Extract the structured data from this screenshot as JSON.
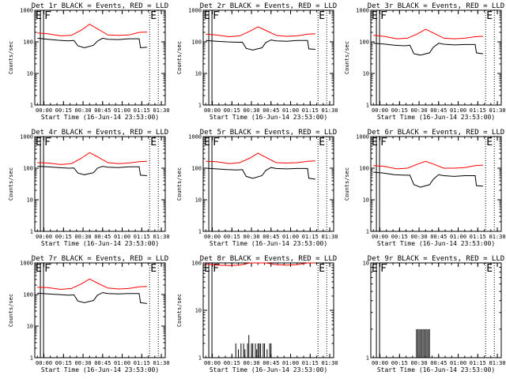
{
  "chart_data": [
    {
      "type": "line",
      "title": "Det 1r BLACK = Events, RED = LLD",
      "xlabel": "Start Time (16-Jun-14 23:53:00)",
      "ylabel": "Counts/sec",
      "yscale": "log",
      "ylim": [
        1,
        1000
      ],
      "xlim": [
        0,
        100
      ],
      "x_unit": "minutes from 23:53:00",
      "x_ticks": [
        7,
        22,
        37,
        52,
        67,
        82,
        97
      ],
      "x_tick_labels": [
        "00:00",
        "00:15",
        "00:30",
        "00:45",
        "01:00",
        "01:15",
        "01:30"
      ],
      "y_ticks": [
        1,
        10,
        100,
        1000
      ],
      "y_tick_labels": [
        "1",
        "10",
        "100",
        "1000"
      ],
      "markers": [
        {
          "label": "E",
          "x": 0
        },
        {
          "label": "F",
          "x": 5.5
        },
        {
          "label": "E",
          "x": 88
        }
      ],
      "series": [
        {
          "color": "#ff0000",
          "x": [
            2,
            10,
            20,
            28,
            36,
            42,
            48,
            56,
            64,
            72,
            80,
            86
          ],
          "y": [
            190,
            180,
            155,
            160,
            240,
            360,
            260,
            165,
            160,
            165,
            200,
            205
          ]
        },
        {
          "color": "#000000",
          "x": [
            2,
            10,
            18,
            26,
            30,
            33,
            38,
            45,
            48,
            52,
            56,
            64,
            72,
            80,
            81,
            86
          ],
          "y": [
            130,
            120,
            112,
            108,
            110,
            75,
            65,
            78,
            105,
            130,
            120,
            118,
            125,
            125,
            65,
            68
          ]
        }
      ]
    },
    {
      "type": "line",
      "title": "Det 2r BLACK = Events, RED = LLD",
      "xlabel": "Start Time (16-Jun-14 23:53:00)",
      "ylabel": "Counts/sec",
      "yscale": "log",
      "ylim": [
        1,
        1000
      ],
      "xlim": [
        0,
        100
      ],
      "x_unit": "minutes from 23:53:00",
      "x_ticks": [
        7,
        22,
        37,
        52,
        67,
        82,
        97
      ],
      "x_tick_labels": [
        "00:00",
        "00:15",
        "00:30",
        "00:45",
        "01:00",
        "01:15",
        "01:30"
      ],
      "y_ticks": [
        1,
        10,
        100,
        1000
      ],
      "y_tick_labels": [
        "1",
        "10",
        "100",
        "1000"
      ],
      "markers": [
        {
          "label": "E",
          "x": 0
        },
        {
          "label": "F",
          "x": 5.5
        },
        {
          "label": "E",
          "x": 88
        }
      ],
      "series": [
        {
          "color": "#ff0000",
          "x": [
            2,
            10,
            20,
            28,
            36,
            42,
            48,
            56,
            64,
            72,
            80,
            86
          ],
          "y": [
            175,
            165,
            145,
            155,
            220,
            300,
            230,
            160,
            150,
            155,
            175,
            180
          ]
        },
        {
          "color": "#000000",
          "x": [
            2,
            10,
            18,
            26,
            30,
            33,
            38,
            45,
            48,
            52,
            56,
            64,
            72,
            80,
            81,
            86
          ],
          "y": [
            110,
            105,
            100,
            97,
            98,
            62,
            55,
            65,
            95,
            115,
            108,
            105,
            110,
            110,
            60,
            58
          ]
        }
      ]
    },
    {
      "type": "line",
      "title": "Det 3r BLACK = Events, RED = LLD",
      "xlabel": "Start Time (16-Jun-14 23:53:00)",
      "ylabel": "Counts/sec",
      "yscale": "log",
      "ylim": [
        1,
        1000
      ],
      "xlim": [
        0,
        100
      ],
      "x_unit": "minutes from 23:53:00",
      "x_ticks": [
        7,
        22,
        37,
        52,
        67,
        82,
        97
      ],
      "x_tick_labels": [
        "00:00",
        "00:15",
        "00:30",
        "00:45",
        "01:00",
        "01:15",
        "01:30"
      ],
      "y_ticks": [
        1,
        10,
        100,
        1000
      ],
      "y_tick_labels": [
        "1",
        "10",
        "100",
        "1000"
      ],
      "markers": [
        {
          "label": "E",
          "x": 0
        },
        {
          "label": "F",
          "x": 5.5
        },
        {
          "label": "E",
          "x": 88
        }
      ],
      "series": [
        {
          "color": "#ff0000",
          "x": [
            2,
            10,
            20,
            28,
            36,
            42,
            48,
            56,
            64,
            72,
            80,
            86
          ],
          "y": [
            160,
            150,
            125,
            130,
            180,
            250,
            190,
            130,
            125,
            130,
            145,
            150
          ]
        },
        {
          "color": "#000000",
          "x": [
            2,
            10,
            18,
            26,
            30,
            33,
            38,
            45,
            48,
            52,
            56,
            64,
            72,
            80,
            81,
            86
          ],
          "y": [
            90,
            85,
            78,
            75,
            78,
            42,
            38,
            45,
            68,
            90,
            84,
            80,
            82,
            82,
            45,
            42
          ]
        }
      ]
    },
    {
      "type": "line",
      "title": "Det 4r BLACK = Events, RED = LLD",
      "xlabel": "Start Time (16-Jun-14 23:53:00)",
      "ylabel": "Counts/sec",
      "yscale": "log",
      "ylim": [
        1,
        1000
      ],
      "xlim": [
        0,
        100
      ],
      "x_unit": "minutes from 23:53:00",
      "x_ticks": [
        7,
        22,
        37,
        52,
        67,
        82,
        97
      ],
      "x_tick_labels": [
        "00:00",
        "00:15",
        "00:30",
        "00:45",
        "01:00",
        "01:15",
        "01:30"
      ],
      "y_ticks": [
        1,
        10,
        100,
        1000
      ],
      "y_tick_labels": [
        "1",
        "10",
        "100",
        "1000"
      ],
      "markers": [
        {
          "label": "E",
          "x": 0
        },
        {
          "label": "F",
          "x": 5.5
        },
        {
          "label": "E",
          "x": 88
        }
      ],
      "series": [
        {
          "color": "#ff0000",
          "x": [
            2,
            10,
            20,
            28,
            36,
            42,
            48,
            56,
            64,
            72,
            80,
            86
          ],
          "y": [
            150,
            145,
            130,
            140,
            210,
            310,
            230,
            150,
            140,
            145,
            160,
            165
          ]
        },
        {
          "color": "#000000",
          "x": [
            2,
            10,
            18,
            26,
            30,
            33,
            38,
            45,
            48,
            52,
            56,
            64,
            72,
            80,
            81,
            86
          ],
          "y": [
            115,
            110,
            105,
            100,
            102,
            70,
            62,
            72,
            100,
            115,
            108,
            105,
            110,
            110,
            60,
            58
          ]
        }
      ]
    },
    {
      "type": "line",
      "title": "Det 5r BLACK = Events, RED = LLD",
      "xlabel": "Start Time (16-Jun-14 23:53:00)",
      "ylabel": "Counts/sec",
      "yscale": "log",
      "ylim": [
        1,
        1000
      ],
      "xlim": [
        0,
        100
      ],
      "x_unit": "minutes from 23:53:00",
      "x_ticks": [
        7,
        22,
        37,
        52,
        67,
        82,
        97
      ],
      "x_tick_labels": [
        "00:00",
        "00:15",
        "00:30",
        "00:45",
        "01:00",
        "01:15",
        "01:30"
      ],
      "y_ticks": [
        1,
        10,
        100,
        1000
      ],
      "y_tick_labels": [
        "1",
        "10",
        "100",
        "1000"
      ],
      "markers": [
        {
          "label": "E",
          "x": 0
        },
        {
          "label": "F",
          "x": 5.5
        },
        {
          "label": "E",
          "x": 88
        }
      ],
      "series": [
        {
          "color": "#ff0000",
          "x": [
            2,
            10,
            20,
            28,
            36,
            42,
            48,
            56,
            64,
            72,
            80,
            86
          ],
          "y": [
            165,
            160,
            140,
            150,
            210,
            300,
            220,
            150,
            145,
            150,
            165,
            170
          ]
        },
        {
          "color": "#000000",
          "x": [
            2,
            10,
            18,
            26,
            30,
            33,
            38,
            45,
            48,
            52,
            56,
            64,
            72,
            80,
            81,
            86
          ],
          "y": [
            100,
            95,
            90,
            88,
            90,
            55,
            48,
            58,
            85,
            105,
            98,
            95,
            98,
            98,
            48,
            45
          ]
        }
      ]
    },
    {
      "type": "line",
      "title": "Det 6r BLACK = Events, RED = LLD",
      "xlabel": "Start Time (16-Jun-14 23:53:00)",
      "ylabel": "Counts/sec",
      "yscale": "log",
      "ylim": [
        1,
        1000
      ],
      "xlim": [
        0,
        100
      ],
      "x_unit": "minutes from 23:53:00",
      "x_ticks": [
        7,
        22,
        37,
        52,
        67,
        82,
        97
      ],
      "x_tick_labels": [
        "00:00",
        "00:15",
        "00:30",
        "00:45",
        "01:00",
        "01:15",
        "01:30"
      ],
      "y_ticks": [
        1,
        10,
        100,
        1000
      ],
      "y_tick_labels": [
        "1",
        "10",
        "100",
        "1000"
      ],
      "markers": [
        {
          "label": "E",
          "x": 0
        },
        {
          "label": "F",
          "x": 5.5
        },
        {
          "label": "E",
          "x": 88
        }
      ],
      "series": [
        {
          "color": "#ff0000",
          "x": [
            2,
            10,
            20,
            28,
            36,
            42,
            48,
            56,
            64,
            72,
            80,
            86
          ],
          "y": [
            120,
            115,
            95,
            100,
            135,
            165,
            135,
            100,
            100,
            105,
            120,
            125
          ]
        },
        {
          "color": "#000000",
          "x": [
            2,
            10,
            18,
            26,
            30,
            33,
            38,
            45,
            48,
            52,
            56,
            64,
            72,
            80,
            81,
            86
          ],
          "y": [
            75,
            70,
            62,
            60,
            60,
            30,
            25,
            30,
            45,
            62,
            58,
            55,
            58,
            58,
            28,
            27
          ]
        }
      ]
    },
    {
      "type": "line",
      "title": "Det 7r BLACK = Events, RED = LLD",
      "xlabel": "Start Time (16-Jun-14 23:53:00)",
      "ylabel": "Counts/sec",
      "yscale": "log",
      "ylim": [
        1,
        1000
      ],
      "xlim": [
        0,
        100
      ],
      "x_unit": "minutes from 23:53:00",
      "x_ticks": [
        7,
        22,
        37,
        52,
        67,
        82,
        97
      ],
      "x_tick_labels": [
        "00:00",
        "00:15",
        "00:30",
        "00:45",
        "01:00",
        "01:15",
        "01:30"
      ],
      "y_ticks": [
        1,
        10,
        100,
        1000
      ],
      "y_tick_labels": [
        "1",
        "10",
        "100",
        "1000"
      ],
      "markers": [
        {
          "label": "E",
          "x": 0
        },
        {
          "label": "F",
          "x": 5.5
        },
        {
          "label": "E",
          "x": 88
        }
      ],
      "series": [
        {
          "color": "#ff0000",
          "x": [
            2,
            10,
            20,
            28,
            36,
            42,
            48,
            56,
            64,
            72,
            80,
            86
          ],
          "y": [
            170,
            165,
            145,
            155,
            220,
            310,
            230,
            160,
            150,
            155,
            175,
            180
          ]
        },
        {
          "color": "#000000",
          "x": [
            2,
            10,
            18,
            26,
            30,
            33,
            38,
            45,
            48,
            52,
            56,
            64,
            72,
            80,
            81,
            86
          ],
          "y": [
            110,
            105,
            100,
            95,
            98,
            62,
            55,
            65,
            95,
            115,
            108,
            105,
            108,
            108,
            55,
            52
          ]
        }
      ]
    },
    {
      "type": "line",
      "title": "Det 8r BLACK = Events, RED = LLD",
      "xlabel": "Start Time (16-Jun-14 23:53:00)",
      "ylabel": "Counts/sec",
      "yscale": "log",
      "ylim": [
        1,
        100
      ],
      "xlim": [
        0,
        100
      ],
      "x_unit": "minutes from 23:53:00",
      "x_ticks": [
        7,
        22,
        37,
        52,
        67,
        82,
        97
      ],
      "x_tick_labels": [
        "00:00",
        "00:15",
        "00:30",
        "00:45",
        "01:00",
        "01:15",
        "01:30"
      ],
      "y_ticks": [
        1,
        10,
        100
      ],
      "y_tick_labels": [
        "1",
        "10",
        "100"
      ],
      "markers": [
        {
          "label": "E",
          "x": 0
        },
        {
          "label": "F",
          "x": 5.5
        },
        {
          "label": "E",
          "x": 88
        }
      ],
      "series": [
        {
          "color": "#ff0000",
          "x": [
            2,
            10,
            20,
            28,
            36,
            42,
            48,
            56,
            64,
            72,
            80,
            86
          ],
          "y": [
            95,
            90,
            88,
            90,
            100,
            100,
            100,
            92,
            90,
            92,
            100,
            100
          ]
        },
        {
          "color": "#000000",
          "kind": "spikes",
          "x": [
            25,
            27,
            29,
            31,
            32,
            34,
            35,
            37,
            38,
            40,
            41,
            42,
            43,
            44,
            46,
            47,
            49,
            51,
            52
          ],
          "y": [
            2,
            1.5,
            2,
            2,
            1.5,
            2,
            3,
            2,
            2,
            2,
            1.5,
            2,
            2,
            2,
            2,
            2,
            1.5,
            2,
            2
          ]
        }
      ]
    },
    {
      "type": "line",
      "title": "Det 9r BLACK = Events, RED = LLD",
      "xlabel": "Start Time (16-Jun-14 23:53:00)",
      "ylabel": "",
      "yscale": "log",
      "ylim": [
        1,
        10
      ],
      "xlim": [
        0,
        100
      ],
      "x_unit": "minutes from 23:53:00",
      "x_ticks": [
        7,
        22,
        37,
        52,
        67,
        82,
        97
      ],
      "x_tick_labels": [
        "00:00",
        "00:15",
        "00:30",
        "00:45",
        "01:00",
        "01:15",
        "01:30"
      ],
      "y_ticks": [
        1,
        10
      ],
      "y_tick_labels": [
        "1",
        "10"
      ],
      "markers": [
        {
          "label": "E",
          "x": 0
        },
        {
          "label": "F",
          "x": 5.5
        },
        {
          "label": "E",
          "x": 88
        }
      ],
      "series": [
        {
          "color": "#000000",
          "kind": "spikes",
          "x": [
            35,
            36,
            37,
            38,
            39,
            40,
            41,
            42,
            43,
            44,
            45
          ],
          "y": [
            2,
            2,
            2,
            2,
            2,
            2,
            2,
            2,
            2,
            2,
            2
          ]
        }
      ]
    }
  ]
}
